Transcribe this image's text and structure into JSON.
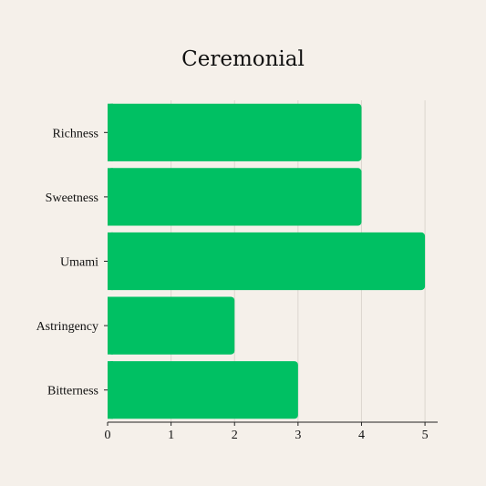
{
  "chart_data": {
    "type": "bar",
    "orientation": "horizontal",
    "title": "Ceremonial",
    "xlabel": "",
    "ylabel": "",
    "categories": [
      "Richness",
      "Sweetness",
      "Umami",
      "Astringency",
      "Bitterness"
    ],
    "values": [
      4,
      4,
      5,
      2,
      3
    ],
    "xlim": [
      0,
      5.2
    ],
    "xticks": [
      "0",
      "1",
      "2",
      "3",
      "4",
      "5"
    ],
    "grid": "vertical",
    "legend": "none",
    "bar_color": "#00c063",
    "background_color": "#f5f0ea"
  }
}
